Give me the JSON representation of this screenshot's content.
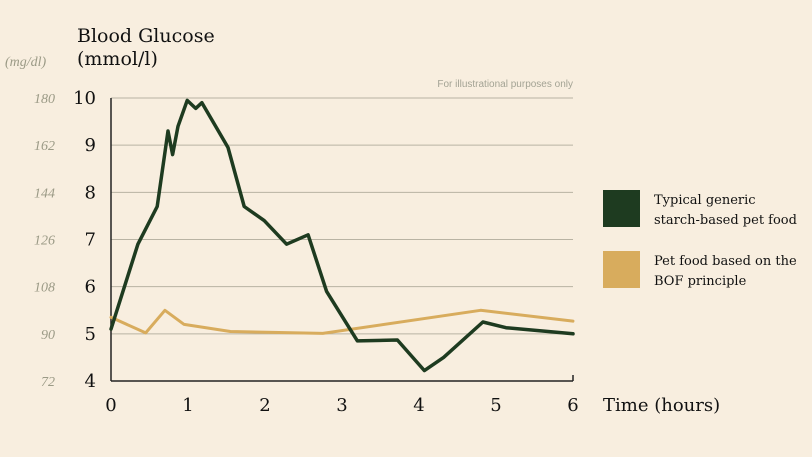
{
  "chart_data": {
    "type": "line",
    "title": "Blood Glucose",
    "title_unit": "(mmol/l)",
    "alt_unit": "(mg/dl)",
    "note": "For illustrational purposes only",
    "xlabel": "Time (hours)",
    "xlim": [
      0,
      6
    ],
    "ylim": [
      4,
      10
    ],
    "x_ticks": [
      "0",
      "1",
      "2",
      "3",
      "4",
      "5",
      "6"
    ],
    "y_ticks": [
      "4",
      "5",
      "6",
      "7",
      "8",
      "9",
      "10"
    ],
    "y_ticks_alt": [
      "72",
      "90",
      "108",
      "126",
      "144",
      "162",
      "180"
    ],
    "grid": true,
    "legend_position": "right",
    "colors": {
      "background": "#f8eedf",
      "grid": "#b9b3a3",
      "axis": "#222222"
    },
    "series": [
      {
        "name": "Typical generic starch-based pet food",
        "color": "#1e3b20",
        "x": [
          0,
          0.35,
          0.6,
          0.74,
          0.8,
          0.87,
          0.99,
          1.1,
          1.18,
          1.52,
          1.73,
          1.99,
          2.28,
          2.56,
          2.8,
          3.2,
          3.72,
          4.07,
          4.32,
          4.83,
          5.13,
          6.0
        ],
        "y": [
          5.1,
          6.9,
          7.7,
          9.3,
          8.8,
          9.4,
          9.95,
          9.78,
          9.9,
          8.95,
          7.7,
          7.4,
          6.9,
          7.1,
          5.9,
          4.85,
          4.87,
          4.22,
          4.5,
          5.25,
          5.13,
          5.0
        ]
      },
      {
        "name": "Pet food based on the BOF principle",
        "color": "#d8ac5d",
        "x": [
          0,
          0.45,
          0.7,
          0.95,
          1.55,
          2.75,
          4.8,
          6.0
        ],
        "y": [
          5.35,
          5.02,
          5.5,
          5.2,
          5.05,
          5.01,
          5.5,
          5.27
        ]
      }
    ]
  }
}
